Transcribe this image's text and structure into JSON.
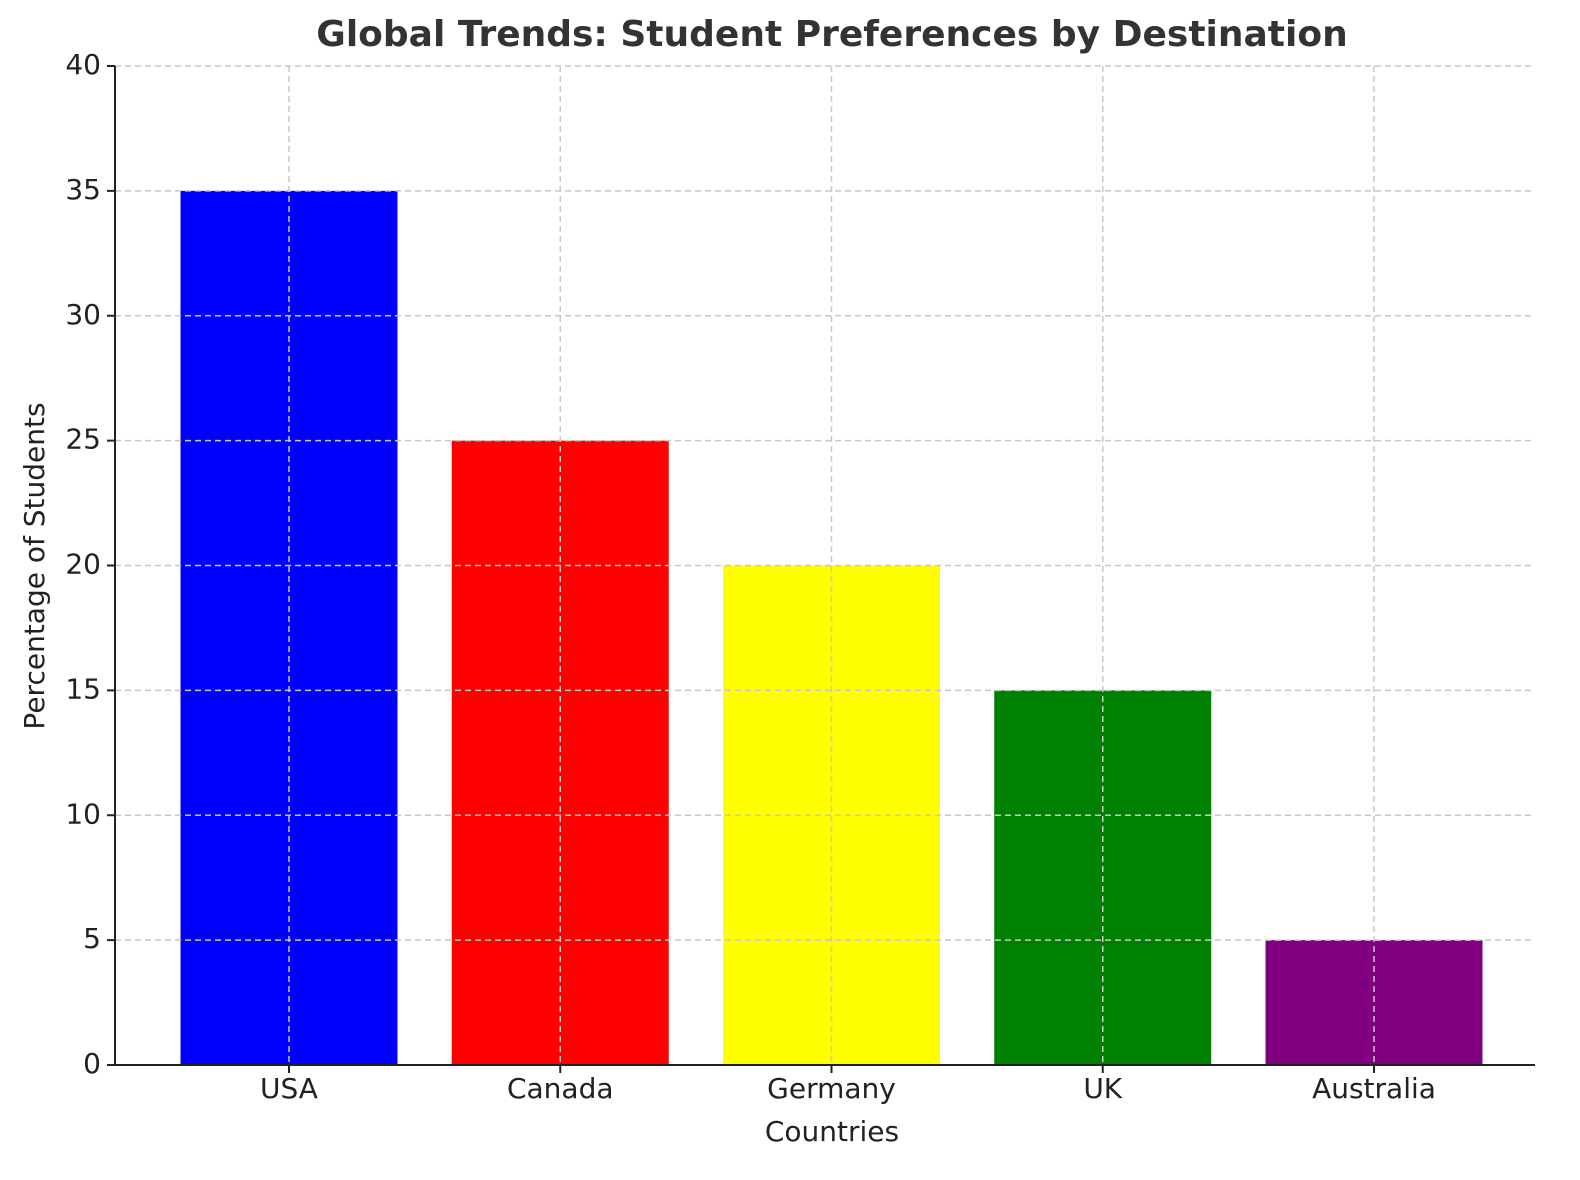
{
  "chart_data": {
    "type": "bar",
    "title": "Global Trends: Student Preferences by Destination",
    "x_label": "Countries",
    "y_label": "Percentage of Students",
    "categories": [
      "USA",
      "Canada",
      "Germany",
      "UK",
      "Australia"
    ],
    "values": [
      35,
      25,
      20,
      15,
      5
    ],
    "colors": [
      "#0000ff",
      "#ff0000",
      "#ffff00",
      "#008000",
      "#800080"
    ],
    "ylim": [
      0,
      40
    ],
    "yticks": [
      0,
      5,
      10,
      15,
      20,
      25,
      30,
      35,
      40
    ],
    "grid": true
  }
}
